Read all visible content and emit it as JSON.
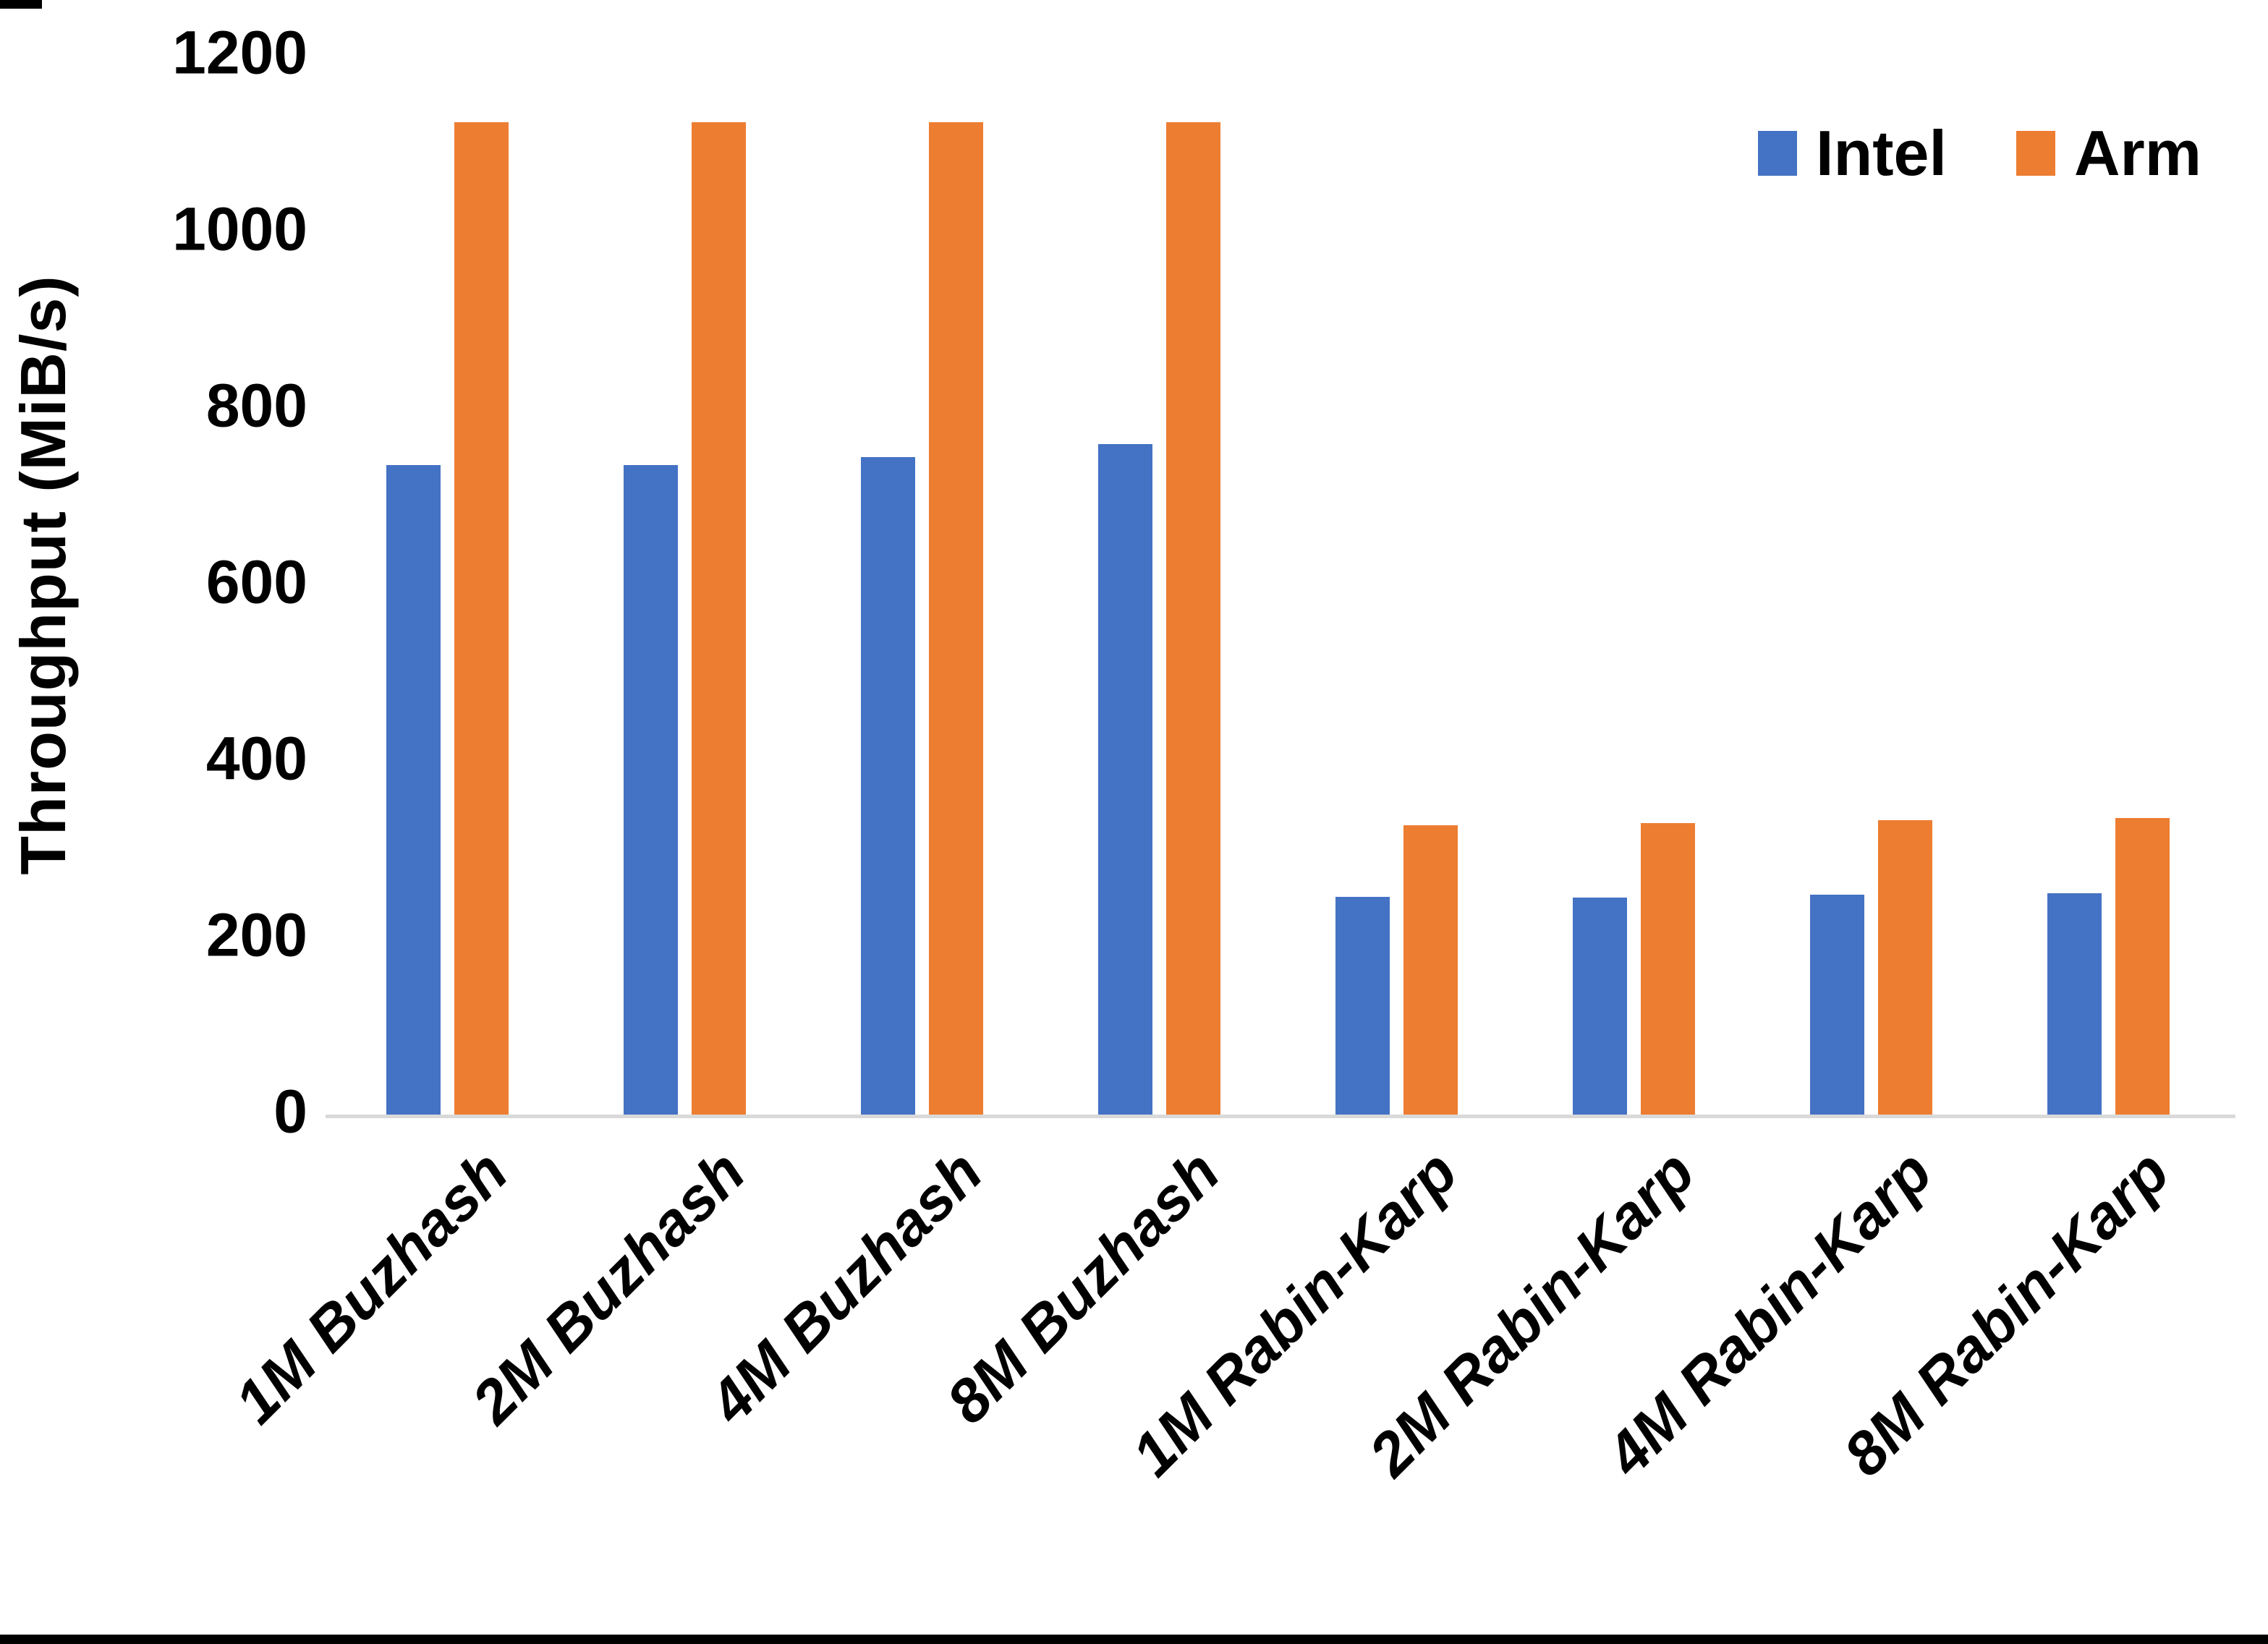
{
  "chart_data": {
    "type": "bar",
    "title": "",
    "xlabel": "",
    "ylabel": "Throughput (MiB/s)",
    "ylim": [
      0,
      1200
    ],
    "yticks": [
      0,
      200,
      400,
      600,
      800,
      1000,
      1200
    ],
    "grid": false,
    "legend_position": "top-right",
    "axis_line_color": "#d9d9d9",
    "categories": [
      "1M Buzhash",
      "2M Buzhash",
      "4M Buzhash",
      "8M Buzhash",
      "1M Rabin-Karp",
      "2M Rabin-Karp",
      "4M Rabin-Karp",
      "8M Rabin-Karp"
    ],
    "series": [
      {
        "name": "Intel",
        "color": "#4472C4",
        "values": [
          736,
          736,
          745,
          760,
          247,
          246,
          249,
          251
        ]
      },
      {
        "name": "Arm",
        "color": "#ED7D31",
        "values": [
          1125,
          1125,
          1125,
          1125,
          328,
          330,
          334,
          336
        ]
      }
    ]
  }
}
